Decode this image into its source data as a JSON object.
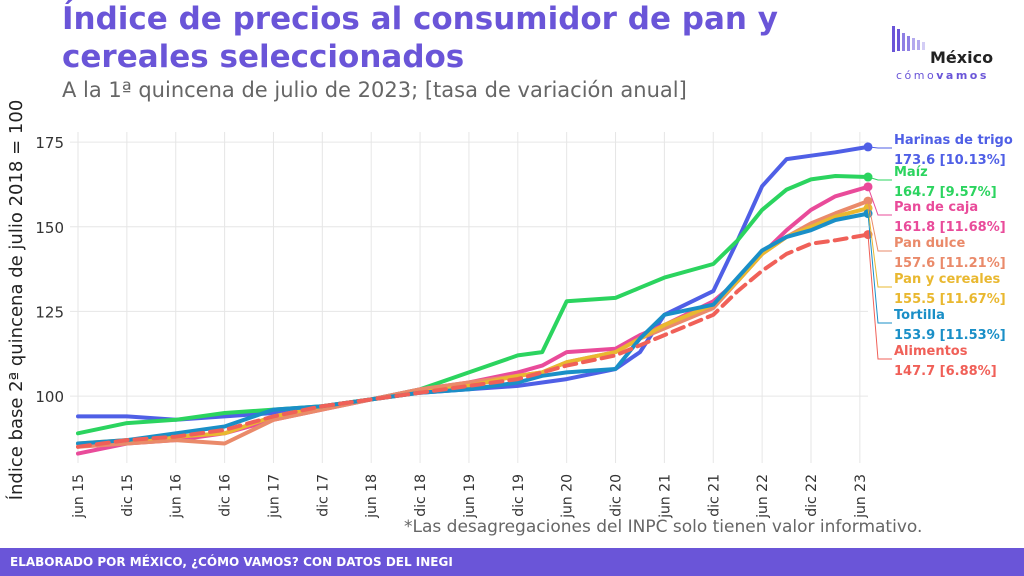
{
  "title": "Índice de precios al consumidor de pan y cereales seleccionados",
  "subtitle": "A la 1ª quincena de julio de 2023; [tasa de variación anual]",
  "logo": {
    "name": "México",
    "tag_light": "cómo",
    "tag_bold": "vamos",
    "icon": "bars-logo-icon"
  },
  "footnote": "*Las desagregaciones del INPC solo tienen valor informativo.",
  "footer": "ELABORADO POR MÉXICO, ¿CÓMO VAMOS? CON DATOS DEL INEGI",
  "chart_data": {
    "type": "line",
    "ylabel": "Índice base 2ª quincena de julio 2018 = 100",
    "xlabel": "",
    "ylim": [
      82,
      178
    ],
    "yticks": [
      100,
      125,
      150,
      175
    ],
    "xlim": [
      "2015-06",
      "2023-07"
    ],
    "xticks": [
      "jun 15",
      "dic 15",
      "jun 16",
      "dic 16",
      "jun 17",
      "dic 17",
      "jun 18",
      "dic 18",
      "jun 19",
      "dic 19",
      "jun 20",
      "dic 20",
      "jun 21",
      "dic 21",
      "jun 22",
      "dic 22",
      "jun 23"
    ],
    "grid": true,
    "x": [
      "2015-06",
      "2015-12",
      "2016-06",
      "2016-12",
      "2017-06",
      "2017-12",
      "2018-06",
      "2018-12",
      "2019-06",
      "2019-12",
      "2020-03",
      "2020-06",
      "2020-12",
      "2021-03",
      "2021-06",
      "2021-12",
      "2022-03",
      "2022-06",
      "2022-09",
      "2022-12",
      "2023-03",
      "2023-07"
    ],
    "series": [
      {
        "name": "Harinas de trigo",
        "label": "173.6 [10.13%]",
        "color": "#4f5fe6",
        "dashed": false,
        "values": [
          94,
          94,
          93,
          94,
          95,
          97,
          99,
          101,
          102,
          103,
          104,
          105,
          108,
          113,
          124,
          131,
          146,
          162,
          170,
          171,
          172,
          173.6
        ]
      },
      {
        "name": "Maíz",
        "label": "164.7 [9.57%]",
        "color": "#2bd45f",
        "dashed": false,
        "values": [
          89,
          92,
          93,
          95,
          96,
          97,
          99,
          102,
          107,
          112,
          113,
          128,
          129,
          132,
          135,
          139,
          146,
          155,
          161,
          164,
          165,
          164.7
        ]
      },
      {
        "name": "Pan de caja",
        "label": "161.8 [11.68%]",
        "color": "#e94b9a",
        "dashed": false,
        "values": [
          83,
          86,
          87,
          89,
          93,
          96,
          99,
          102,
          104,
          107,
          109,
          113,
          114,
          118,
          121,
          128,
          134,
          142,
          149,
          155,
          159,
          161.8
        ]
      },
      {
        "name": "Pan dulce",
        "label": "157.6 [11.21%]",
        "color": "#ea8a6a",
        "dashed": false,
        "values": [
          85,
          86,
          87,
          86,
          93,
          96,
          99,
          102,
          104,
          106,
          107,
          110,
          113,
          117,
          120,
          126,
          134,
          142,
          147,
          151,
          154,
          157.6
        ]
      },
      {
        "name": "Pan y cereales",
        "label": "155.5 [11.67%]",
        "color": "#e9b830",
        "dashed": false,
        "values": [
          86,
          87,
          88,
          89,
          94,
          97,
          99,
          101,
          103,
          106,
          107,
          110,
          113,
          117,
          121,
          127,
          134,
          142,
          147,
          150,
          153,
          155.5
        ]
      },
      {
        "name": "Tortilla",
        "label": "153.9 [11.53%]",
        "color": "#1a8fc7",
        "dashed": false,
        "values": [
          86,
          87,
          89,
          91,
          96,
          97,
          99,
          101,
          102,
          104,
          106,
          107,
          108,
          117,
          124,
          127,
          135,
          143,
          147,
          149,
          152,
          153.9
        ]
      },
      {
        "name": "Alimentos",
        "label": "147.7 [6.88%]",
        "color": "#f06058",
        "dashed": true,
        "values": [
          85,
          87,
          88,
          90,
          94,
          97,
          99,
          101,
          103,
          105,
          107,
          109,
          112,
          115,
          118,
          124,
          131,
          137,
          142,
          145,
          146,
          147.7
        ]
      }
    ]
  }
}
